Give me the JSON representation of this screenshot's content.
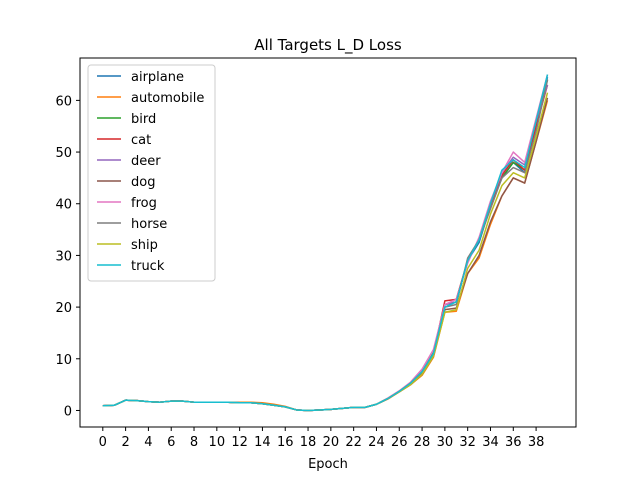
{
  "chart_data": {
    "type": "line",
    "title": "All Targets L_D Loss",
    "xlabel": "Epoch",
    "ylabel": "",
    "xlim": [
      -2,
      41.5
    ],
    "ylim": [
      -3.2,
      68.2
    ],
    "xticks": [
      0,
      2,
      4,
      6,
      8,
      10,
      12,
      14,
      16,
      18,
      20,
      22,
      24,
      26,
      28,
      30,
      32,
      34,
      36,
      38
    ],
    "yticks": [
      0,
      10,
      20,
      30,
      40,
      50,
      60
    ],
    "legend_position": "upper-left",
    "grid": false,
    "x": [
      0,
      1,
      2,
      3,
      4,
      5,
      6,
      7,
      8,
      9,
      10,
      11,
      12,
      13,
      14,
      15,
      16,
      17,
      18,
      19,
      20,
      21,
      22,
      23,
      24,
      25,
      26,
      27,
      28,
      29,
      30,
      31,
      32,
      33,
      34,
      35,
      36,
      37,
      38,
      39
    ],
    "series": [
      {
        "name": "airplane",
        "color": "#1f77b4",
        "values": [
          0.9,
          1.0,
          2.0,
          1.9,
          1.7,
          1.6,
          1.8,
          1.8,
          1.6,
          1.6,
          1.6,
          1.6,
          1.5,
          1.5,
          1.3,
          1.0,
          0.7,
          0.1,
          0.0,
          0.1,
          0.2,
          0.4,
          0.6,
          0.6,
          1.2,
          2.3,
          3.7,
          5.3,
          7.5,
          11.0,
          20.5,
          21.0,
          29.0,
          32.5,
          39.5,
          45.0,
          48.0,
          46.0,
          55.0,
          64.5
        ]
      },
      {
        "name": "automobile",
        "color": "#ff7f0e",
        "values": [
          0.9,
          1.0,
          2.0,
          1.9,
          1.7,
          1.6,
          1.8,
          1.8,
          1.6,
          1.6,
          1.6,
          1.6,
          1.6,
          1.6,
          1.5,
          1.2,
          0.8,
          0.1,
          0.0,
          0.1,
          0.2,
          0.4,
          0.6,
          0.6,
          1.2,
          2.2,
          3.6,
          5.0,
          6.8,
          10.3,
          19.0,
          19.2,
          26.5,
          29.5,
          36.0,
          41.5,
          45.0,
          44.0,
          52.0,
          60.0
        ]
      },
      {
        "name": "bird",
        "color": "#2ca02c",
        "values": [
          0.9,
          1.0,
          2.0,
          1.9,
          1.7,
          1.6,
          1.8,
          1.8,
          1.6,
          1.6,
          1.6,
          1.6,
          1.5,
          1.5,
          1.3,
          1.0,
          0.7,
          0.1,
          0.0,
          0.1,
          0.2,
          0.4,
          0.6,
          0.6,
          1.2,
          2.3,
          3.7,
          5.3,
          7.5,
          11.2,
          20.5,
          21.0,
          29.0,
          33.0,
          39.5,
          45.0,
          48.0,
          46.5,
          55.0,
          64.0
        ]
      },
      {
        "name": "cat",
        "color": "#d62728",
        "values": [
          0.9,
          1.0,
          2.0,
          1.9,
          1.7,
          1.6,
          1.8,
          1.8,
          1.6,
          1.6,
          1.6,
          1.6,
          1.5,
          1.5,
          1.3,
          1.0,
          0.7,
          0.1,
          0.0,
          0.1,
          0.2,
          0.4,
          0.6,
          0.6,
          1.2,
          2.3,
          3.7,
          5.3,
          7.3,
          11.0,
          21.2,
          21.5,
          29.0,
          33.0,
          39.5,
          45.5,
          48.5,
          46.5,
          55.0,
          63.0
        ]
      },
      {
        "name": "deer",
        "color": "#9467bd",
        "values": [
          0.9,
          1.0,
          2.0,
          1.9,
          1.7,
          1.6,
          1.8,
          1.8,
          1.6,
          1.6,
          1.6,
          1.6,
          1.5,
          1.5,
          1.3,
          1.0,
          0.7,
          0.1,
          0.0,
          0.1,
          0.2,
          0.4,
          0.6,
          0.6,
          1.2,
          2.3,
          3.7,
          5.3,
          7.5,
          11.0,
          20.5,
          21.0,
          29.0,
          33.0,
          40.0,
          46.0,
          49.0,
          47.5,
          56.0,
          63.0
        ]
      },
      {
        "name": "dog",
        "color": "#8c564b",
        "values": [
          0.9,
          1.0,
          2.0,
          1.9,
          1.7,
          1.6,
          1.8,
          1.8,
          1.6,
          1.6,
          1.6,
          1.6,
          1.5,
          1.5,
          1.3,
          1.0,
          0.7,
          0.1,
          0.0,
          0.1,
          0.2,
          0.4,
          0.6,
          0.6,
          1.2,
          2.3,
          3.6,
          5.0,
          7.0,
          10.5,
          19.5,
          19.8,
          26.5,
          30.0,
          36.5,
          41.5,
          45.0,
          44.0,
          52.0,
          60.5
        ]
      },
      {
        "name": "frog",
        "color": "#e377c2",
        "values": [
          0.9,
          1.0,
          2.0,
          1.9,
          1.7,
          1.6,
          1.8,
          1.8,
          1.6,
          1.6,
          1.6,
          1.6,
          1.5,
          1.5,
          1.3,
          1.0,
          0.7,
          0.1,
          0.0,
          0.1,
          0.2,
          0.4,
          0.6,
          0.6,
          1.2,
          2.4,
          3.8,
          5.5,
          8.0,
          11.8,
          20.5,
          21.5,
          28.5,
          33.5,
          40.5,
          46.0,
          50.0,
          48.0,
          56.5,
          65.0
        ]
      },
      {
        "name": "horse",
        "color": "#7f7f7f",
        "values": [
          0.9,
          1.0,
          2.0,
          1.9,
          1.7,
          1.6,
          1.8,
          1.8,
          1.6,
          1.6,
          1.6,
          1.6,
          1.5,
          1.5,
          1.3,
          1.0,
          0.7,
          0.1,
          0.0,
          0.1,
          0.2,
          0.4,
          0.6,
          0.6,
          1.2,
          2.3,
          3.7,
          5.3,
          7.5,
          11.0,
          20.0,
          20.5,
          29.5,
          33.0,
          39.0,
          45.0,
          47.0,
          46.0,
          54.0,
          64.0
        ]
      },
      {
        "name": "ship",
        "color": "#bcbd22",
        "values": [
          0.9,
          1.0,
          2.0,
          1.9,
          1.7,
          1.6,
          1.8,
          1.8,
          1.6,
          1.6,
          1.6,
          1.6,
          1.5,
          1.5,
          1.3,
          1.0,
          0.7,
          0.1,
          0.0,
          0.1,
          0.2,
          0.4,
          0.6,
          0.6,
          1.2,
          2.3,
          3.6,
          5.0,
          7.0,
          10.5,
          19.0,
          19.5,
          27.5,
          31.0,
          38.0,
          43.5,
          46.0,
          45.0,
          53.0,
          61.5
        ]
      },
      {
        "name": "truck",
        "color": "#17becf",
        "values": [
          0.9,
          1.0,
          2.0,
          1.9,
          1.7,
          1.6,
          1.8,
          1.8,
          1.6,
          1.6,
          1.6,
          1.6,
          1.5,
          1.5,
          1.3,
          1.0,
          0.7,
          0.1,
          0.0,
          0.1,
          0.2,
          0.4,
          0.6,
          0.6,
          1.2,
          2.3,
          3.7,
          5.3,
          7.5,
          11.0,
          20.0,
          21.0,
          29.0,
          33.0,
          40.0,
          46.5,
          48.5,
          47.0,
          56.0,
          65.0
        ]
      }
    ]
  }
}
